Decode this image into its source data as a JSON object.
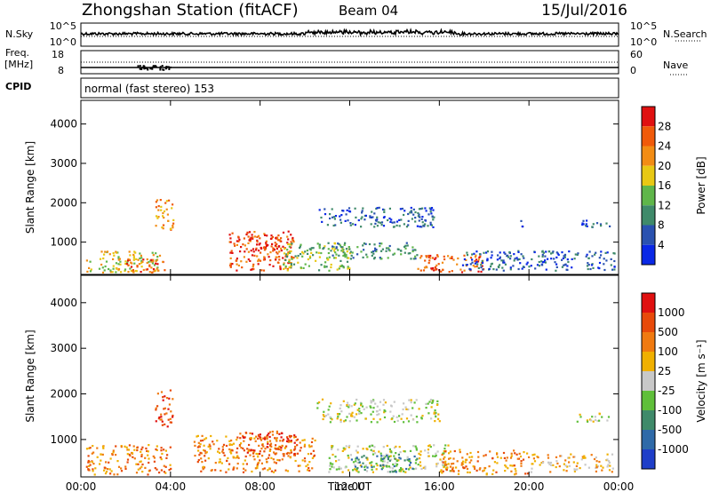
{
  "header": {
    "station": "Zhongshan Station (fitACF)",
    "beam": "Beam 04",
    "date": "15/Jul/2016"
  },
  "strip_labels": {
    "nsky": "N.Sky",
    "nsky_ticks": [
      "10^5",
      "10^0"
    ],
    "nsearch": "N.Search",
    "nsearch_ticks": [
      "10^5",
      "10^0"
    ],
    "freq": "Freq.",
    "freq_unit": "[MHz]",
    "freq_ticks": [
      "18",
      "8"
    ],
    "nave_ticks": [
      "60",
      "0"
    ],
    "nave": "Nave",
    "cpid": "CPID",
    "cpid_value": "normal (fast stereo) 153"
  },
  "colors": {
    "power": [
      "#0a28e6",
      "#2a52b0",
      "#3f8a6a",
      "#5fb64a",
      "#e8c814",
      "#f28c14",
      "#f05a0a",
      "#e01010"
    ],
    "velocity": [
      "#1f3ec8",
      "#2f6aa8",
      "#3f8a6a",
      "#5fbf3a",
      "#c8c8c8",
      "#f0b000",
      "#f07a10",
      "#e84a0a",
      "#e01010"
    ]
  },
  "chart_data": [
    {
      "type": "heatmap",
      "name": "power",
      "ylabel": "Slant Range [km]",
      "yticks": [
        "1000",
        "2000",
        "3000",
        "4000"
      ],
      "ylim": [
        180,
        4600
      ],
      "xlim_hours": [
        0,
        24
      ],
      "xticks": [
        "00:00",
        "04:00",
        "08:00",
        "12:00",
        "16:00",
        "20:00",
        "00:00"
      ],
      "colorbar": {
        "label": "Power [dB]",
        "ticks": [
          "4",
          "8",
          "12",
          "16",
          "20",
          "24",
          "28"
        ]
      },
      "regions": [
        {
          "t0": 0.2,
          "t1": 3.5,
          "r0": 250,
          "r1": 800,
          "level": 4
        },
        {
          "t0": 2.0,
          "t1": 3.8,
          "r0": 250,
          "r1": 600,
          "level": 6
        },
        {
          "t0": 3.3,
          "t1": 4.1,
          "r0": 1300,
          "r1": 2100,
          "level": 5
        },
        {
          "t0": 6.6,
          "t1": 9.5,
          "r0": 300,
          "r1": 1300,
          "level": 6
        },
        {
          "t0": 7.5,
          "t1": 9.0,
          "r0": 800,
          "r1": 1200,
          "level": 7
        },
        {
          "t0": 9.0,
          "t1": 12.0,
          "r0": 300,
          "r1": 1000,
          "level": 3
        },
        {
          "t0": 10.6,
          "t1": 15.8,
          "r0": 1400,
          "r1": 1900,
          "level": 1
        },
        {
          "t0": 11.0,
          "t1": 15.0,
          "r0": 600,
          "r1": 1000,
          "level": 2
        },
        {
          "t0": 15.0,
          "t1": 18.0,
          "r0": 250,
          "r1": 700,
          "level": 6
        },
        {
          "t0": 17.0,
          "t1": 23.8,
          "r0": 300,
          "r1": 800,
          "level": 1
        },
        {
          "t0": 19.5,
          "t1": 19.8,
          "r0": 1400,
          "r1": 1600,
          "level": 0
        },
        {
          "t0": 22.2,
          "t1": 23.6,
          "r0": 1400,
          "r1": 1600,
          "level": 1
        }
      ]
    },
    {
      "type": "heatmap",
      "name": "velocity",
      "ylabel": "Slant Range [km]",
      "yticks": [
        "1000",
        "2000",
        "3000",
        "4000"
      ],
      "ylim": [
        180,
        4600
      ],
      "xlim_hours": [
        0,
        24
      ],
      "xticks": [
        "00:00",
        "04:00",
        "08:00",
        "12:00",
        "16:00",
        "20:00",
        "00:00"
      ],
      "xlabel": "Time UT",
      "colorbar": {
        "label": "Velocity [m s⁻¹]",
        "ticks": [
          "1000",
          "500",
          "100",
          "25",
          "-25",
          "-100",
          "-500",
          "-1000"
        ]
      },
      "regions": [
        {
          "t0": 0.2,
          "t1": 4.0,
          "r0": 250,
          "r1": 900,
          "level": 6
        },
        {
          "t0": 3.3,
          "t1": 4.1,
          "r0": 1300,
          "r1": 2100,
          "level": 7
        },
        {
          "t0": 5.0,
          "t1": 10.5,
          "r0": 300,
          "r1": 1100,
          "level": 6
        },
        {
          "t0": 7.0,
          "t1": 9.8,
          "r0": 700,
          "r1": 1200,
          "level": 7
        },
        {
          "t0": 10.5,
          "t1": 16.0,
          "r0": 1400,
          "r1": 1900,
          "level": 4
        },
        {
          "t0": 11.0,
          "t1": 16.5,
          "r0": 300,
          "r1": 900,
          "level": 4
        },
        {
          "t0": 12.0,
          "t1": 15.0,
          "r0": 300,
          "r1": 700,
          "level": 2
        },
        {
          "t0": 16.0,
          "t1": 20.0,
          "r0": 250,
          "r1": 800,
          "level": 6
        },
        {
          "t0": 20.0,
          "t1": 23.8,
          "r0": 300,
          "r1": 700,
          "level": 5
        },
        {
          "t0": 22.0,
          "t1": 23.6,
          "r0": 1400,
          "r1": 1600,
          "level": 4
        }
      ]
    }
  ]
}
